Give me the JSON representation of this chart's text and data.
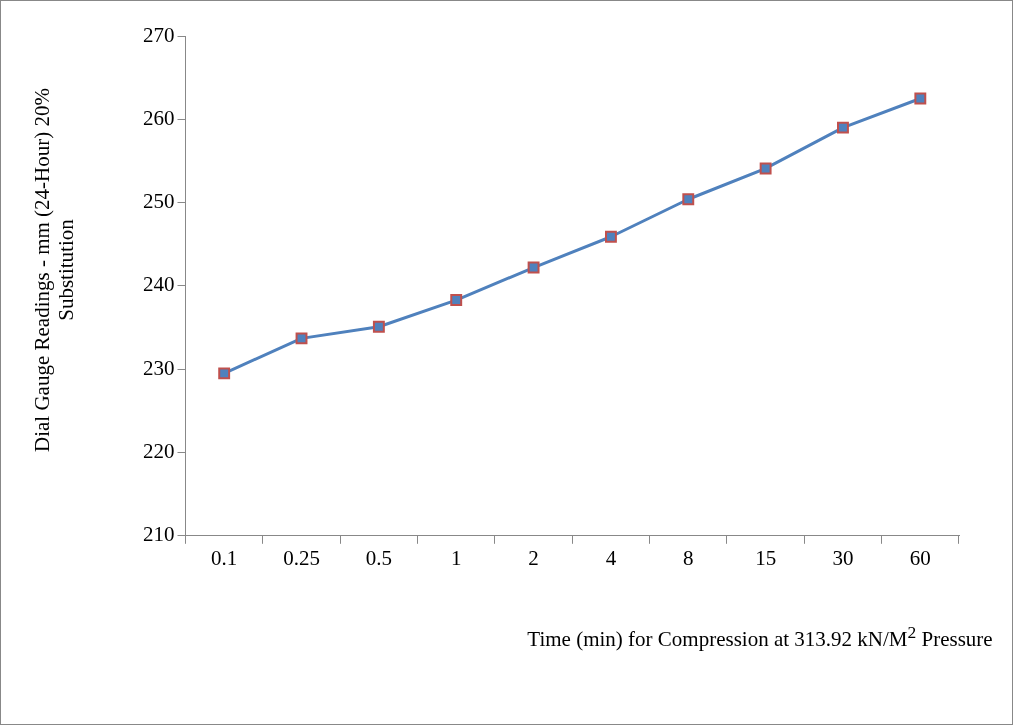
{
  "chart_data": {
    "type": "line",
    "xlabel": "Time (min) for Compression at 313.92 kN/M$^{2}$ Pressure",
    "ylabel": "Dial Gauge Readings  - mm (24-Hour) 20% Substitution",
    "categories": [
      "0.1",
      "0.25",
      "0.5",
      "1",
      "2",
      "4",
      "8",
      "15",
      "30",
      "60"
    ],
    "series": [
      {
        "color": "#4f81bd",
        "values": [
          229.5,
          233.7,
          235.1,
          238.3,
          242.2,
          245.9,
          250.4,
          254.1,
          259.0,
          262.5
        ]
      }
    ],
    "ylim": [
      210,
      270
    ],
    "yticks": [
      210,
      220,
      230,
      240,
      250,
      260,
      270
    ],
    "grid": false,
    "legend": false,
    "marker": "square",
    "line_style": "solid"
  }
}
